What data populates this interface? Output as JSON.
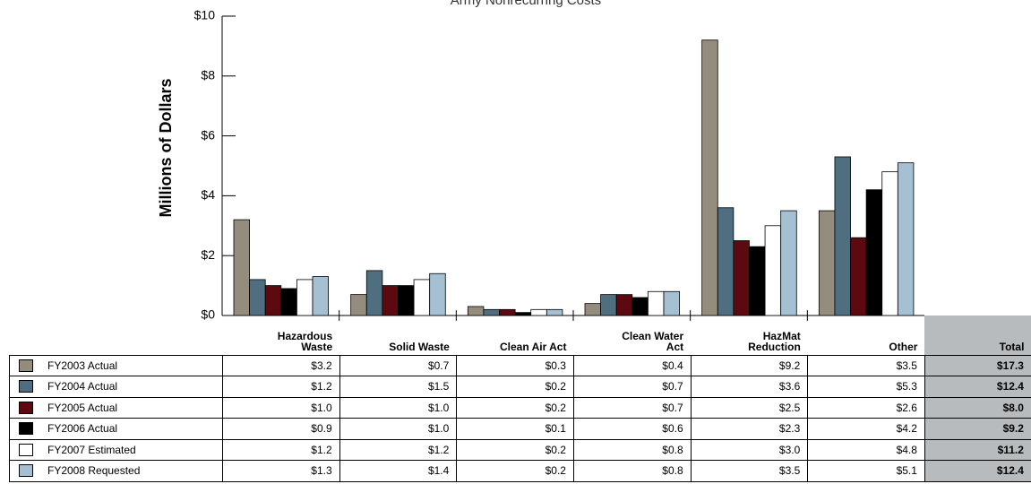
{
  "chart_data": {
    "type": "bar",
    "title": "Army Nonrecurring Costs",
    "y_label": "Millions of Dollars",
    "categories": [
      "Hazardous Waste",
      "Solid Waste",
      "Clean Air Act",
      "Clean Water Act",
      "HazMat Reduction",
      "Other"
    ],
    "total_label": "Total",
    "ylim": [
      0,
      10
    ],
    "yticks": [
      {
        "value": 0,
        "label": "$0"
      },
      {
        "value": 2,
        "label": "$2"
      },
      {
        "value": 4,
        "label": "$4"
      },
      {
        "value": 6,
        "label": "$6"
      },
      {
        "value": 8,
        "label": "$8"
      },
      {
        "value": 10,
        "label": "$10"
      }
    ],
    "series": [
      {
        "name": "FY2003 Actual",
        "color": "#948c7c",
        "values": [
          3.2,
          0.7,
          0.3,
          0.4,
          9.2,
          3.5
        ],
        "value_labels": [
          "$3.2",
          "$0.7",
          "$0.3",
          "$0.4",
          "$9.2",
          "$3.5"
        ],
        "total": "$17.3"
      },
      {
        "name": "FY2004 Actual",
        "color": "#4f6f80",
        "values": [
          1.2,
          1.5,
          0.2,
          0.7,
          3.6,
          5.3
        ],
        "value_labels": [
          "$1.2",
          "$1.5",
          "$0.2",
          "$0.7",
          "$3.6",
          "$5.3"
        ],
        "total": "$12.4"
      },
      {
        "name": "FY2005 Actual",
        "color": "#5c0a10",
        "values": [
          1.0,
          1.0,
          0.2,
          0.7,
          2.5,
          2.6
        ],
        "value_labels": [
          "$1.0",
          "$1.0",
          "$0.2",
          "$0.7",
          "$2.5",
          "$2.6"
        ],
        "total": "$8.0"
      },
      {
        "name": "FY2006 Actual",
        "color": "#000000",
        "values": [
          0.9,
          1.0,
          0.1,
          0.6,
          2.3,
          4.2
        ],
        "value_labels": [
          "$0.9",
          "$1.0",
          "$0.1",
          "$0.6",
          "$2.3",
          "$4.2"
        ],
        "total": "$9.2"
      },
      {
        "name": "FY2007 Estimated",
        "color": "#ffffff",
        "values": [
          1.2,
          1.2,
          0.2,
          0.8,
          3.0,
          4.8
        ],
        "value_labels": [
          "$1.2",
          "$1.2",
          "$0.2",
          "$0.8",
          "$3.0",
          "$4.8"
        ],
        "total": "$11.2"
      },
      {
        "name": "FY2008 Requested",
        "color": "#a5c0d2",
        "values": [
          1.3,
          1.4,
          0.2,
          0.8,
          3.5,
          5.1
        ],
        "value_labels": [
          "$1.3",
          "$1.4",
          "$0.2",
          "$0.8",
          "$3.5",
          "$5.1"
        ],
        "total": "$12.4"
      }
    ]
  }
}
